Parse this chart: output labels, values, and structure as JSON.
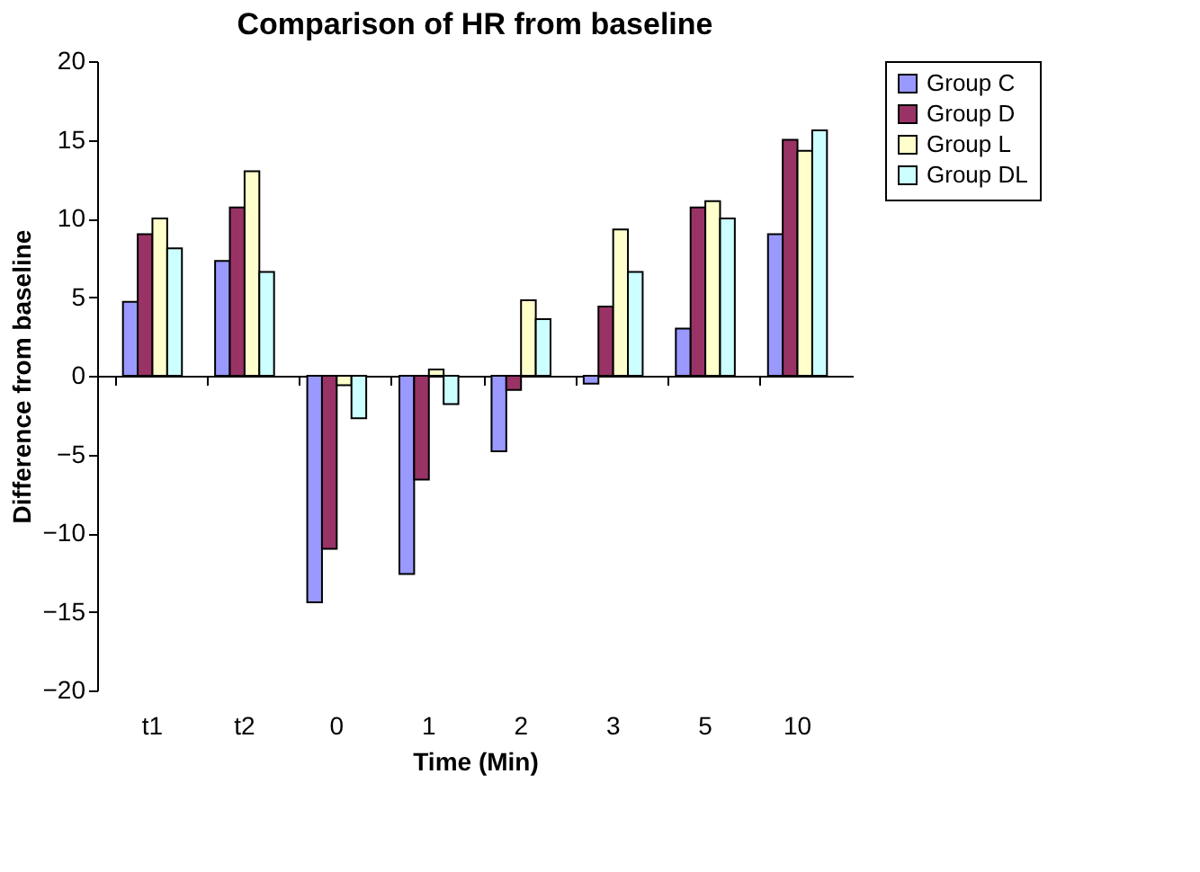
{
  "chart_data": {
    "type": "bar",
    "title": "Comparison of HR from baseline",
    "xlabel": "Time (Min)",
    "ylabel": "Difference from baseline",
    "categories": [
      "t1",
      "t2",
      "0",
      "1",
      "2",
      "3",
      "5",
      "10"
    ],
    "series": [
      {
        "name": "Group C",
        "color": "#9999ff",
        "values": [
          4.7,
          7.3,
          -14.4,
          -12.6,
          -4.8,
          -0.5,
          3.0,
          9.0
        ]
      },
      {
        "name": "Group D",
        "color": "#993366",
        "values": [
          9.0,
          10.7,
          -11.0,
          -6.6,
          -0.9,
          4.4,
          10.7,
          15.0
        ]
      },
      {
        "name": "Group L",
        "color": "#ffffcc",
        "values": [
          10.0,
          13.0,
          -0.6,
          0.4,
          4.8,
          9.3,
          11.1,
          14.3
        ]
      },
      {
        "name": "Group DL",
        "color": "#ccffff",
        "values": [
          8.1,
          6.6,
          -2.7,
          -1.8,
          3.6,
          6.6,
          10.0,
          15.6
        ]
      }
    ],
    "ylim": [
      -20,
      20
    ],
    "yticks": [
      -20,
      -15,
      -10,
      -5,
      0,
      5,
      10,
      15,
      20
    ],
    "legend": "right"
  }
}
